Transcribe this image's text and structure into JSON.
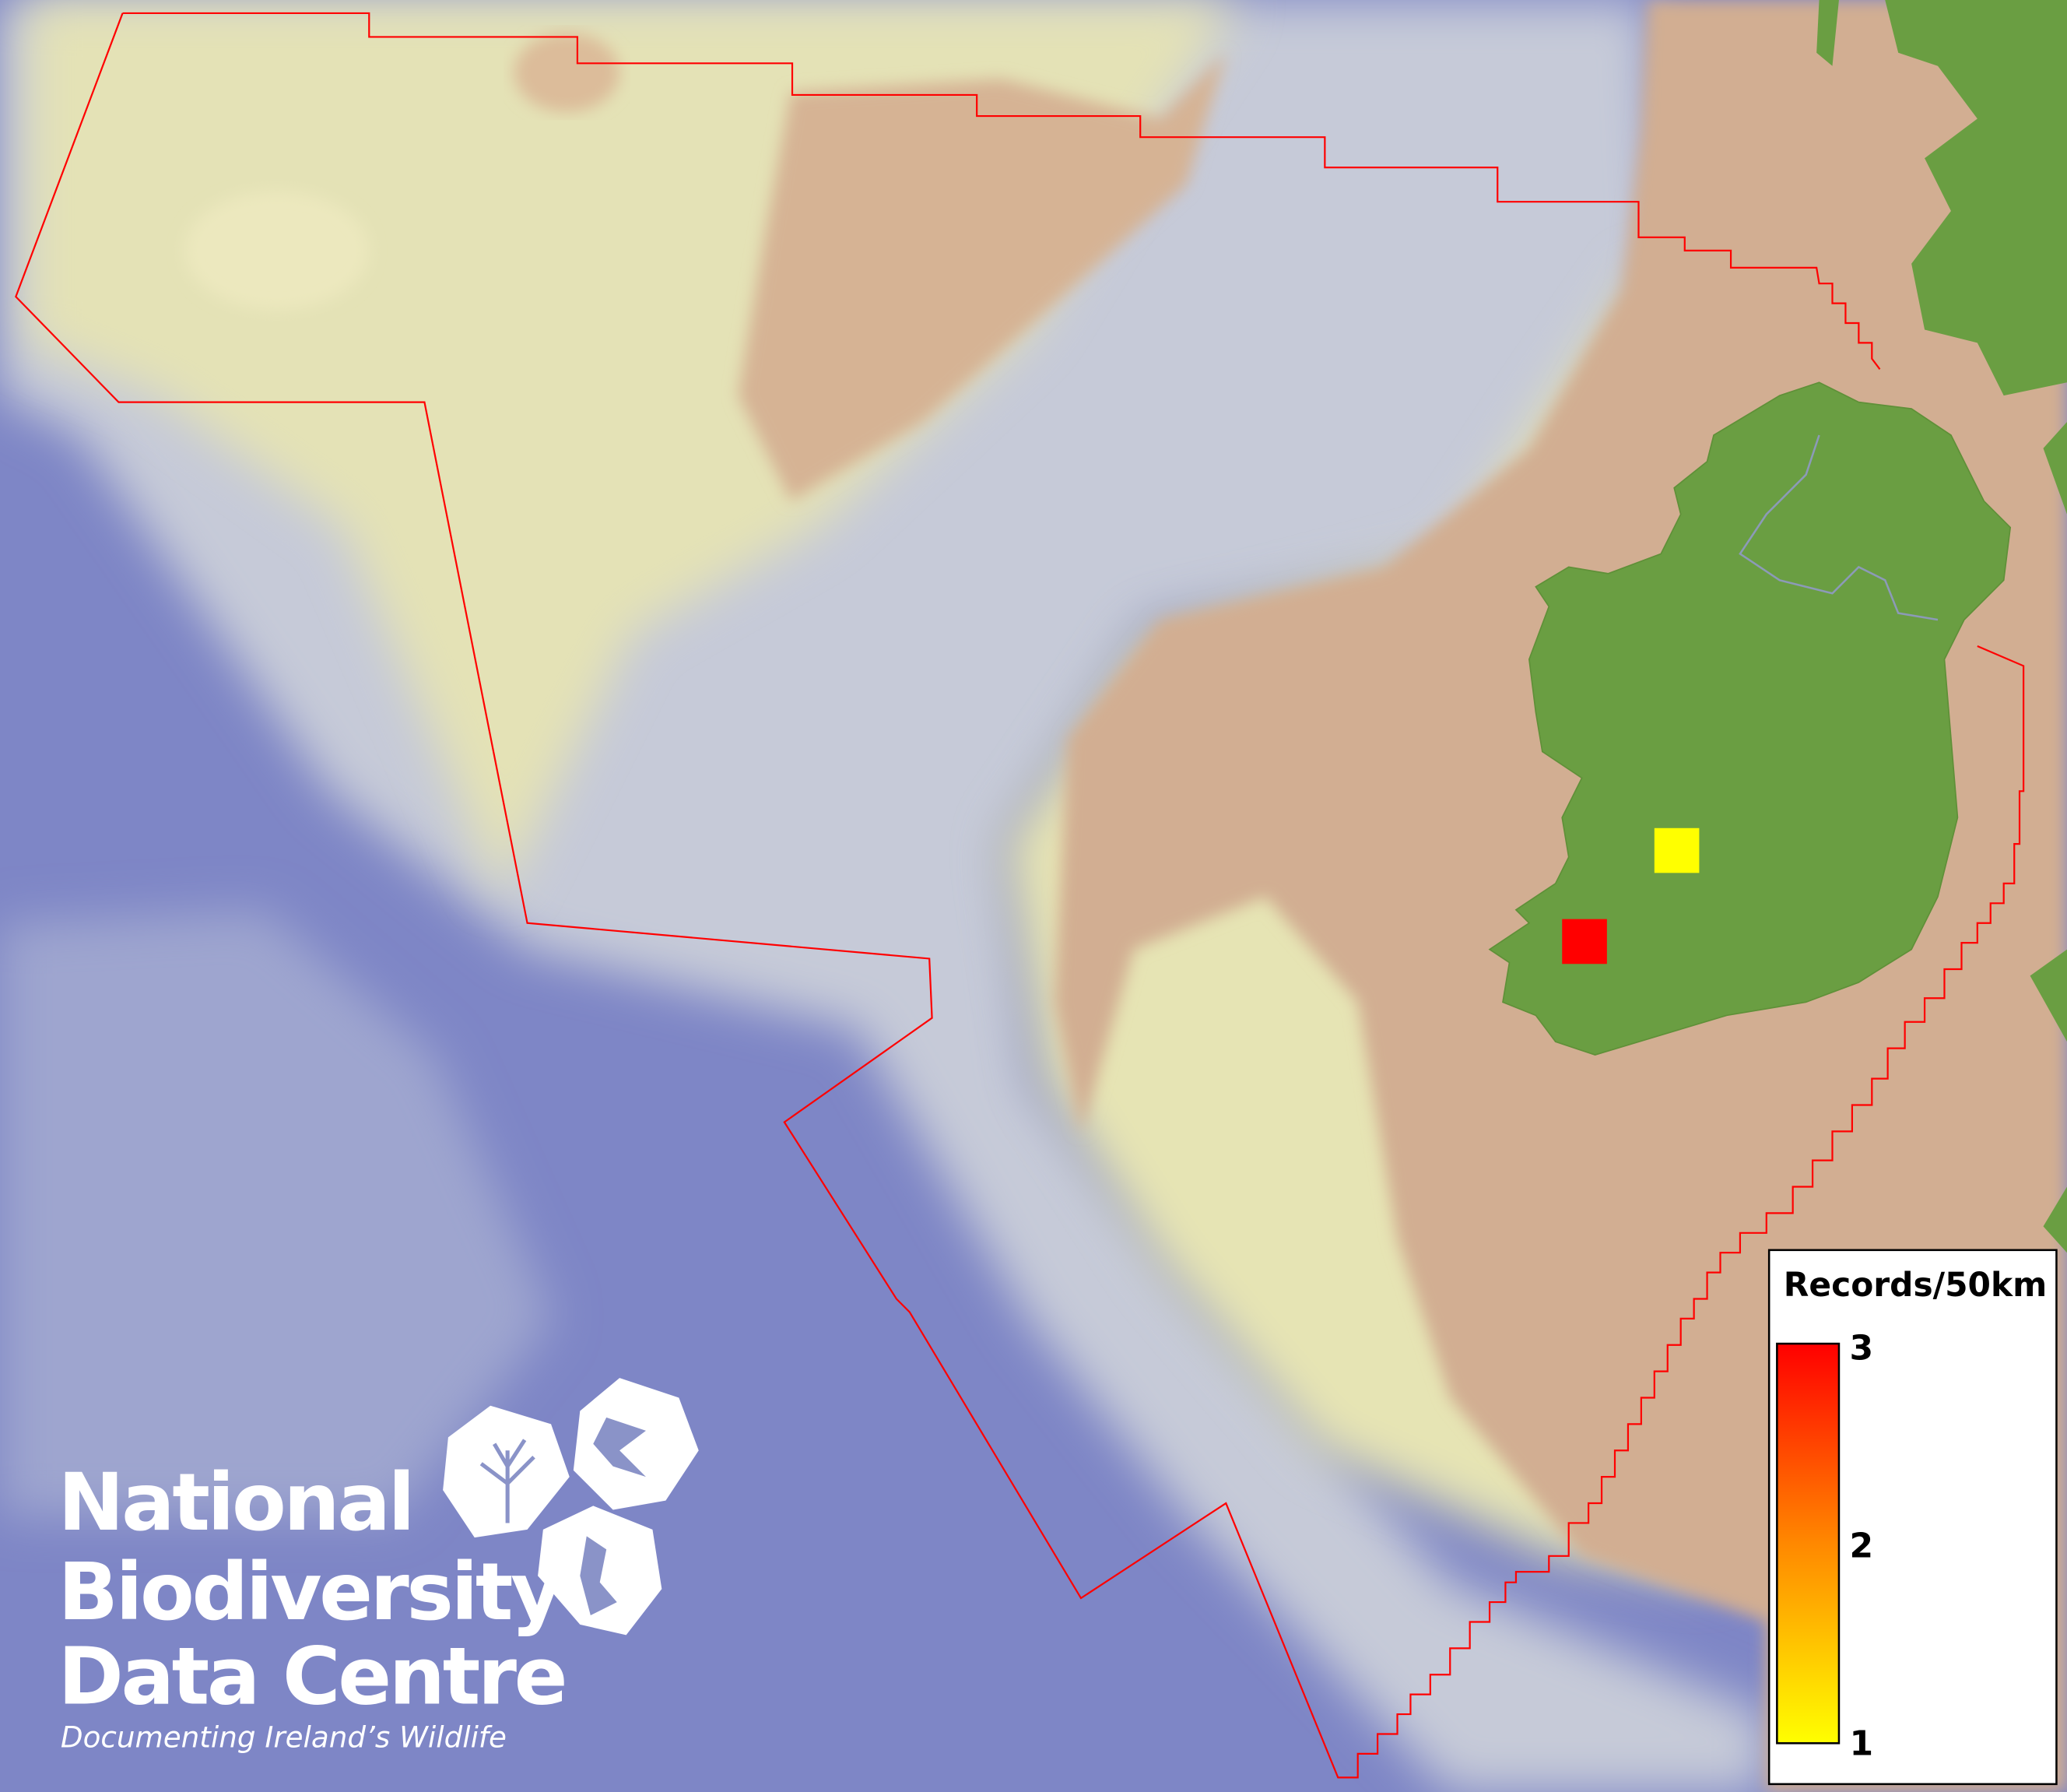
{
  "map": {
    "colors": {
      "deep_ocean": "#7e86c6",
      "slope": "#c9cfd8",
      "shelf": "#e6e4b8",
      "shallow_shelf": "#d4b090",
      "land": "#6da043",
      "boundary": "#ff0000"
    },
    "records": [
      {
        "value": 1,
        "color": "#ffff00"
      },
      {
        "value": 3,
        "color": "#ff0000"
      }
    ]
  },
  "legend": {
    "title": "Records/50km",
    "ticks": [
      "3",
      "2",
      "1"
    ],
    "min": 1,
    "max": 3,
    "color_low": "#ffff00",
    "color_high": "#ff0000"
  },
  "logo": {
    "line1": "National",
    "line2": "Biodiversity",
    "line3": "Data Centre",
    "tagline": "Documenting Ireland’s Wildlife"
  }
}
